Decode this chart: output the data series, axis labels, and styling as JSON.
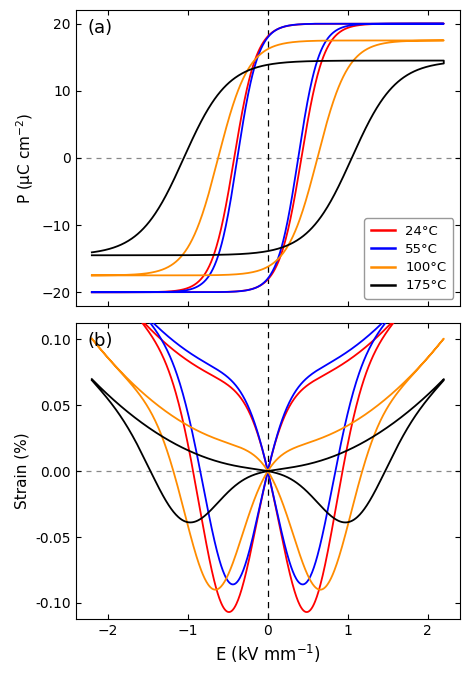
{
  "colors": {
    "24C": "#ff0000",
    "55C": "#0000ff",
    "100C": "#ff8c00",
    "175C": "#000000"
  },
  "legend_labels": [
    "24°C",
    "55°C",
    "100°C",
    "175°C"
  ],
  "panel_a_label": "(a)",
  "panel_b_label": "(b)",
  "xlabel": "E (kV mm$^{-1}$)",
  "ylabel_a": "P (μC cm$^{-2}$)",
  "ylabel_b": "Strain (%)",
  "xlim": [
    -2.4,
    2.4
  ],
  "ylim_a": [
    -22,
    22
  ],
  "ylim_b": [
    -0.112,
    0.112
  ],
  "xticks": [
    -2,
    -1,
    0,
    1,
    2
  ],
  "yticks_a": [
    -20,
    -10,
    0,
    10,
    20
  ],
  "yticks_b": [
    -0.1,
    -0.05,
    0.0,
    0.05,
    0.1
  ],
  "background_color": "#ffffff",
  "dashed_v_color": "#000000",
  "dashed_h_color": "#888888"
}
